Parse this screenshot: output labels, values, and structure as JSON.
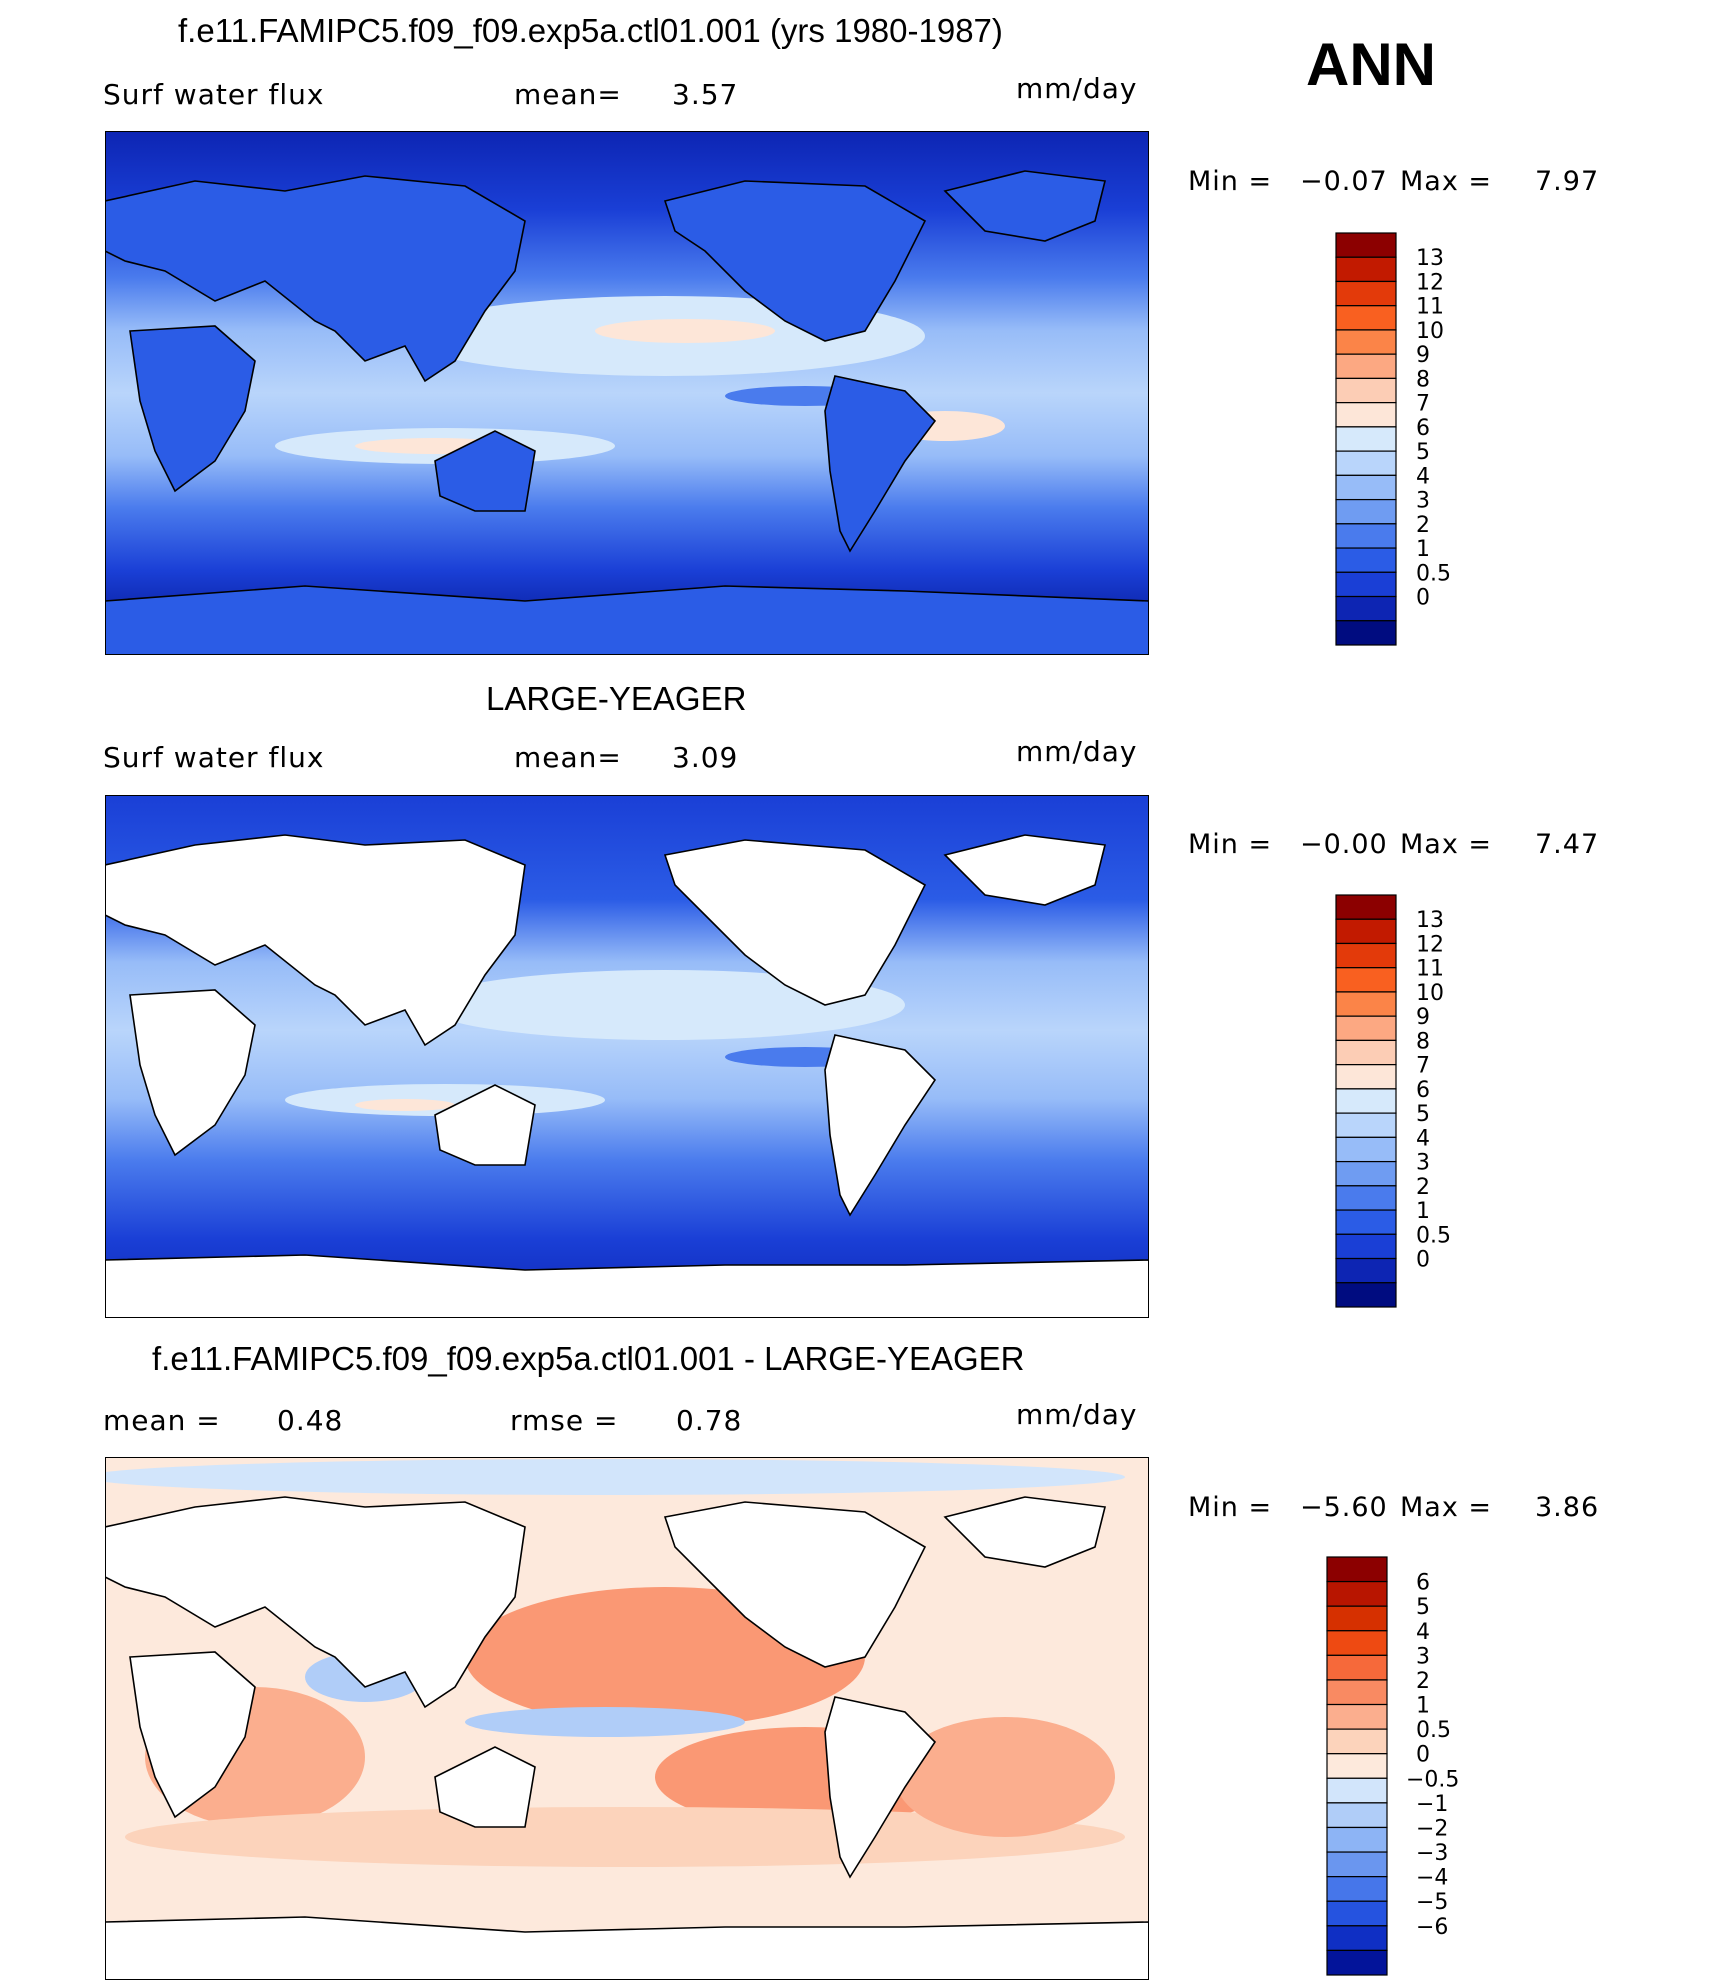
{
  "season": "ANN",
  "units": "mm/day",
  "panels": [
    {
      "title": "f.e11.FAMIPC5.f09_f09.exp5a.ctl01.001 (yrs 1980-1987)",
      "variable": "Surf water flux",
      "stat1_label": "mean=",
      "stat1_value": "3.57",
      "stat2_label": "",
      "stat2_value": "",
      "min_label": "Min =",
      "min_value": "−0.07",
      "max_label": "Max =",
      "max_value": "7.97",
      "colorbar": [
        "13",
        "12",
        "11",
        "10",
        "9",
        "8",
        "7",
        "6",
        "5",
        "4",
        "3",
        "2",
        "1",
        "0.5",
        "0"
      ],
      "colors": [
        "#8c0000",
        "#c21a00",
        "#e33a0a",
        "#f96020",
        "#fb8448",
        "#fca882",
        "#fccdb5",
        "#fde6d8",
        "#d6e9fb",
        "#b9d5fb",
        "#97bcf8",
        "#6f9cf2",
        "#4a7bed",
        "#2b5ce6",
        "#1a3fd6",
        "#0d25b3",
        "#000c80"
      ]
    },
    {
      "title": "LARGE-YEAGER",
      "variable": "Surf water flux",
      "stat1_label": "mean=",
      "stat1_value": "3.09",
      "stat2_label": "",
      "stat2_value": "",
      "min_label": "Min =",
      "min_value": "−0.00",
      "max_label": "Max =",
      "max_value": "7.47",
      "colorbar": [
        "13",
        "12",
        "11",
        "10",
        "9",
        "8",
        "7",
        "6",
        "5",
        "4",
        "3",
        "2",
        "1",
        "0.5",
        "0"
      ],
      "colors": [
        "#8c0000",
        "#c21a00",
        "#e33a0a",
        "#f96020",
        "#fb8448",
        "#fca882",
        "#fccdb5",
        "#fde6d8",
        "#d6e9fb",
        "#b9d5fb",
        "#97bcf8",
        "#6f9cf2",
        "#4a7bed",
        "#2b5ce6",
        "#1a3fd6",
        "#0d25b3",
        "#000c80"
      ]
    },
    {
      "title": "f.e11.FAMIPC5.f09_f09.exp5a.ctl01.001 - LARGE-YEAGER",
      "variable": "",
      "stat1_label": "mean =",
      "stat1_value": "0.48",
      "stat2_label": "rmse =",
      "stat2_value": "0.78",
      "min_label": "Min =",
      "min_value": "−5.60",
      "max_label": "Max =",
      "max_value": "3.86",
      "colorbar": [
        "6",
        "5",
        "4",
        "3",
        "2",
        "1",
        "0.5",
        "0",
        "−0.5",
        "−1",
        "−2",
        "−3",
        "−4",
        "−5",
        "−6"
      ],
      "colors": [
        "#8c0000",
        "#b81500",
        "#d63000",
        "#ee4a12",
        "#f6693a",
        "#f98a62",
        "#fbae8e",
        "#fcd3bb",
        "#fde9dc",
        "#d2e5fb",
        "#b0cdf8",
        "#8db4f5",
        "#6a96ef",
        "#4676ea",
        "#2553e0",
        "#0f2fc4",
        "#03149a"
      ]
    }
  ]
}
